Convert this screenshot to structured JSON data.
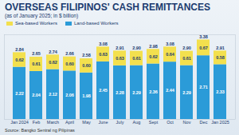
{
  "chart_data": {
    "type": "bar",
    "title": "OVERSEAS FILIPINOS' CASH REMITTANCES",
    "subtitle": "(as of January 2025; in $ billion)",
    "categories": [
      "Jan 2024",
      "Feb",
      "March",
      "April",
      "May",
      "June",
      "July",
      "Aug",
      "Sept",
      "Oct",
      "Nov",
      "Dec",
      "Jan 2025"
    ],
    "series": [
      {
        "name": "Land-based Workers",
        "color": "#2b9bd8",
        "values": [
          2.22,
          2.04,
          2.12,
          2.06,
          1.98,
          2.45,
          2.28,
          2.29,
          2.36,
          2.44,
          2.29,
          2.71,
          2.33
        ],
        "value_labels": [
          "2.22",
          "2.04",
          "2.12",
          "2.06",
          "1.98",
          "2.45",
          "2.28",
          "2.29",
          "2.36",
          "2.44",
          "2.29",
          "2.71",
          "2.33"
        ]
      },
      {
        "name": "Sea-based Workers",
        "color": "#f3e04e",
        "values": [
          0.62,
          0.61,
          0.62,
          0.6,
          0.6,
          0.63,
          0.63,
          0.61,
          0.62,
          0.64,
          0.61,
          0.67,
          0.58
        ],
        "value_labels": [
          "0.62",
          "0.61",
          "0.62",
          "0.60",
          "0.60",
          "0.63",
          "0.63",
          "0.61",
          "0.62",
          "0.64",
          "0.61",
          "0.67",
          "0.58"
        ]
      }
    ],
    "totals": [
      2.84,
      2.65,
      2.74,
      2.66,
      2.58,
      3.08,
      2.91,
      2.9,
      2.98,
      3.08,
      2.9,
      3.38,
      2.91
    ],
    "total_labels": [
      "2.84",
      "2.65",
      "2.74",
      "2.66",
      "2.58",
      "3.08",
      "2.91",
      "2.90",
      "2.98",
      "3.08",
      "2.90",
      "3.38",
      "2.91"
    ],
    "stacked": true,
    "data_labels": true,
    "tick_labels": "x",
    "grid": false,
    "legend": "top-left",
    "ylim": [
      0,
      3.6
    ],
    "source": "Source: Bangko Sentral ng Pilipinas"
  }
}
